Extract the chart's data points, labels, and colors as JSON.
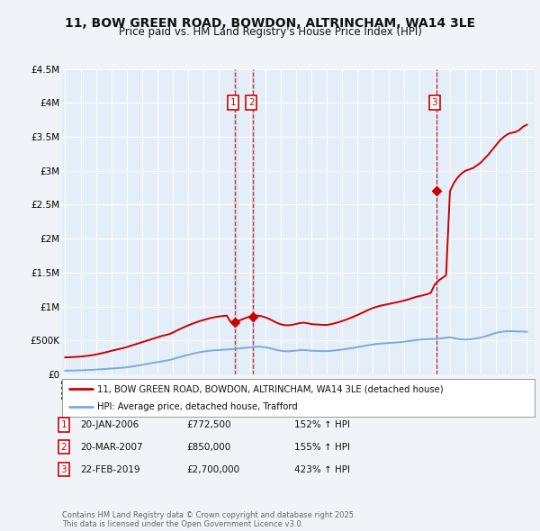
{
  "title": "11, BOW GREEN ROAD, BOWDON, ALTRINCHAM, WA14 3LE",
  "subtitle": "Price paid vs. HM Land Registry's House Price Index (HPI)",
  "background_color": "#f0f4f8",
  "plot_bg_color": "#e4eef8",
  "grid_color": "#ffffff",
  "ylim": [
    0,
    4500000
  ],
  "yticks": [
    0,
    500000,
    1000000,
    1500000,
    2000000,
    2500000,
    3000000,
    3500000,
    4000000,
    4500000
  ],
  "ytick_labels": [
    "£0",
    "£500K",
    "£1M",
    "£1.5M",
    "£2M",
    "£2.5M",
    "£3M",
    "£3.5M",
    "£4M",
    "£4.5M"
  ],
  "xlim_start": 1994.8,
  "xlim_end": 2025.5,
  "transactions": [
    {
      "date": 2006.05,
      "price": 772500,
      "label": "1"
    },
    {
      "date": 2007.21,
      "price": 850000,
      "label": "2"
    },
    {
      "date": 2019.12,
      "price": 2700000,
      "label": "3"
    }
  ],
  "transaction_dates_display": [
    "20-JAN-2006",
    "20-MAR-2007",
    "22-FEB-2019"
  ],
  "transaction_prices_display": [
    "£772,500",
    "£850,000",
    "£2,700,000"
  ],
  "transaction_pct_display": [
    "152% ↑ HPI",
    "155% ↑ HPI",
    "423% ↑ HPI"
  ],
  "red_line_color": "#cc0000",
  "blue_line_color": "#7aaadd",
  "legend_label_red": "11, BOW GREEN ROAD, BOWDON, ALTRINCHAM, WA14 3LE (detached house)",
  "legend_label_blue": "HPI: Average price, detached house, Trafford",
  "footnote": "Contains HM Land Registry data © Crown copyright and database right 2025.\nThis data is licensed under the Open Government Licence v3.0.",
  "hpi_years": [
    1995.0,
    1995.25,
    1995.5,
    1995.75,
    1996.0,
    1996.25,
    1996.5,
    1996.75,
    1997.0,
    1997.25,
    1997.5,
    1997.75,
    1998.0,
    1998.25,
    1998.5,
    1998.75,
    1999.0,
    1999.25,
    1999.5,
    1999.75,
    2000.0,
    2000.25,
    2000.5,
    2000.75,
    2001.0,
    2001.25,
    2001.5,
    2001.75,
    2002.0,
    2002.25,
    2002.5,
    2002.75,
    2003.0,
    2003.25,
    2003.5,
    2003.75,
    2004.0,
    2004.25,
    2004.5,
    2004.75,
    2005.0,
    2005.25,
    2005.5,
    2005.75,
    2006.0,
    2006.25,
    2006.5,
    2006.75,
    2007.0,
    2007.25,
    2007.5,
    2007.75,
    2008.0,
    2008.25,
    2008.5,
    2008.75,
    2009.0,
    2009.25,
    2009.5,
    2009.75,
    2010.0,
    2010.25,
    2010.5,
    2010.75,
    2011.0,
    2011.25,
    2011.5,
    2011.75,
    2012.0,
    2012.25,
    2012.5,
    2012.75,
    2013.0,
    2013.25,
    2013.5,
    2013.75,
    2014.0,
    2014.25,
    2014.5,
    2014.75,
    2015.0,
    2015.25,
    2015.5,
    2015.75,
    2016.0,
    2016.25,
    2016.5,
    2016.75,
    2017.0,
    2017.25,
    2017.5,
    2017.75,
    2018.0,
    2018.25,
    2018.5,
    2018.75,
    2019.0,
    2019.25,
    2019.5,
    2019.75,
    2020.0,
    2020.25,
    2020.5,
    2020.75,
    2021.0,
    2021.25,
    2021.5,
    2021.75,
    2022.0,
    2022.25,
    2022.5,
    2022.75,
    2023.0,
    2023.25,
    2023.5,
    2023.75,
    2024.0,
    2024.25,
    2024.5,
    2024.75,
    2025.0
  ],
  "hpi_values": [
    55000,
    56000,
    57000,
    58000,
    60000,
    62000,
    64000,
    66000,
    70000,
    74000,
    78000,
    82000,
    86000,
    90000,
    94000,
    98000,
    104000,
    112000,
    120000,
    130000,
    140000,
    150000,
    160000,
    170000,
    180000,
    190000,
    200000,
    210000,
    225000,
    242000,
    258000,
    274000,
    288000,
    302000,
    315000,
    326000,
    336000,
    344000,
    350000,
    355000,
    358000,
    362000,
    366000,
    370000,
    374000,
    380000,
    386000,
    392000,
    398000,
    404000,
    408000,
    406000,
    398000,
    388000,
    374000,
    360000,
    348000,
    342000,
    340000,
    344000,
    350000,
    356000,
    358000,
    354000,
    348000,
    346000,
    344000,
    342000,
    342000,
    346000,
    352000,
    358000,
    366000,
    374000,
    382000,
    392000,
    402000,
    412000,
    422000,
    432000,
    440000,
    448000,
    454000,
    458000,
    462000,
    466000,
    470000,
    474000,
    480000,
    488000,
    496000,
    504000,
    510000,
    514000,
    518000,
    520000,
    522000,
    526000,
    532000,
    540000,
    546000,
    536000,
    522000,
    516000,
    512000,
    516000,
    522000,
    532000,
    542000,
    556000,
    574000,
    594000,
    612000,
    624000,
    632000,
    636000,
    636000,
    634000,
    632000,
    630000,
    628000
  ],
  "red_years": [
    1995.0,
    1995.25,
    1995.5,
    1995.75,
    1996.0,
    1996.25,
    1996.5,
    1996.75,
    1997.0,
    1997.25,
    1997.5,
    1997.75,
    1998.0,
    1998.25,
    1998.5,
    1998.75,
    1999.0,
    1999.25,
    1999.5,
    1999.75,
    2000.0,
    2000.25,
    2000.5,
    2000.75,
    2001.0,
    2001.25,
    2001.5,
    2001.75,
    2002.0,
    2002.25,
    2002.5,
    2002.75,
    2003.0,
    2003.25,
    2003.5,
    2003.75,
    2004.0,
    2004.25,
    2004.5,
    2004.75,
    2005.0,
    2005.25,
    2005.5,
    2005.75,
    2006.0,
    2006.25,
    2006.5,
    2006.75,
    2007.0,
    2007.25,
    2007.5,
    2007.75,
    2008.0,
    2008.25,
    2008.5,
    2008.75,
    2009.0,
    2009.25,
    2009.5,
    2009.75,
    2010.0,
    2010.25,
    2010.5,
    2010.75,
    2011.0,
    2011.25,
    2011.5,
    2011.75,
    2012.0,
    2012.25,
    2012.5,
    2012.75,
    2013.0,
    2013.25,
    2013.5,
    2013.75,
    2014.0,
    2014.25,
    2014.5,
    2014.75,
    2015.0,
    2015.25,
    2015.5,
    2015.75,
    2016.0,
    2016.25,
    2016.5,
    2016.75,
    2017.0,
    2017.25,
    2017.5,
    2017.75,
    2018.0,
    2018.25,
    2018.5,
    2018.75,
    2019.0,
    2019.25,
    2019.5,
    2019.75,
    2020.0,
    2020.25,
    2020.5,
    2020.75,
    2021.0,
    2021.25,
    2021.5,
    2021.75,
    2022.0,
    2022.25,
    2022.5,
    2022.75,
    2023.0,
    2023.25,
    2023.5,
    2023.75,
    2024.0,
    2024.25,
    2024.5,
    2024.75,
    2025.0
  ],
  "red_values": [
    250000,
    252000,
    255000,
    258000,
    262000,
    268000,
    275000,
    283000,
    293000,
    305000,
    318000,
    332000,
    347000,
    360000,
    373000,
    387000,
    402000,
    420000,
    438000,
    456000,
    474000,
    492000,
    510000,
    528000,
    546000,
    564000,
    578000,
    592000,
    616000,
    645000,
    672000,
    698000,
    722000,
    745000,
    766000,
    785000,
    802000,
    818000,
    833000,
    844000,
    853000,
    860000,
    866000,
    772500,
    772500,
    790000,
    810000,
    833000,
    850000,
    862000,
    866000,
    858000,
    840000,
    818000,
    788000,
    760000,
    738000,
    726000,
    722000,
    730000,
    742000,
    756000,
    762000,
    753000,
    740000,
    736000,
    733000,
    729000,
    729000,
    738000,
    752000,
    768000,
    786000,
    806000,
    828000,
    851000,
    876000,
    901000,
    928000,
    956000,
    978000,
    996000,
    1012000,
    1024000,
    1036000,
    1048000,
    1060000,
    1072000,
    1086000,
    1102000,
    1120000,
    1138000,
    1152000,
    1165000,
    1180000,
    1200000,
    1320000,
    1380000,
    1420000,
    1460000,
    2700000,
    2820000,
    2900000,
    2960000,
    3000000,
    3020000,
    3040000,
    3080000,
    3120000,
    3180000,
    3240000,
    3310000,
    3380000,
    3450000,
    3500000,
    3540000,
    3560000,
    3570000,
    3600000,
    3650000,
    3680000
  ]
}
